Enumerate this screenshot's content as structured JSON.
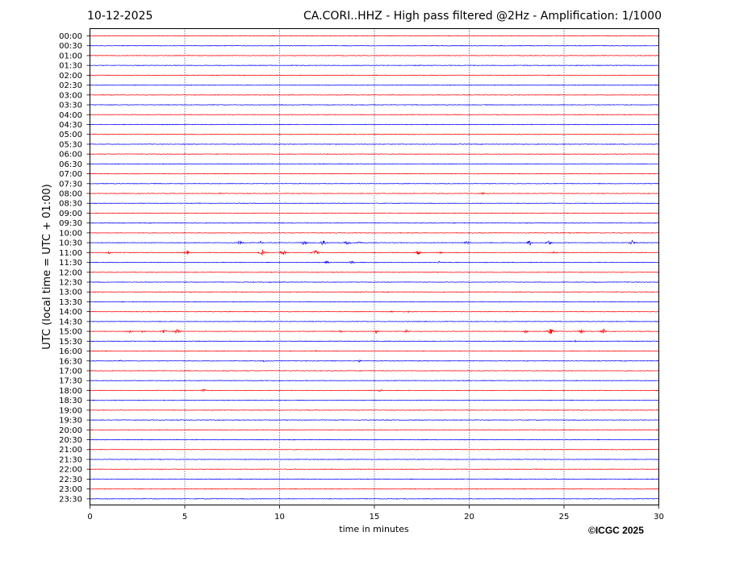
{
  "header": {
    "date": "10-12-2025",
    "title": "CA.CORI..HHZ - High pass filtered @2Hz - Amplification: 1/1000"
  },
  "footer": {
    "copyright": "©ICGC 2025"
  },
  "chart_data": {
    "type": "helicorder",
    "title": "CA.CORI..HHZ - High pass filtered @2Hz - Amplification: 1/1000",
    "xlabel": "time in minutes",
    "ylabel": "UTC (local time = UTC + 01:00)",
    "xlim": [
      0,
      30
    ],
    "xticks": [
      0,
      5,
      10,
      15,
      20,
      25,
      30
    ],
    "vertical_grid": [
      5,
      10,
      15,
      20,
      25
    ],
    "row_labels": [
      "00:00",
      "00:30",
      "01:00",
      "01:30",
      "02:00",
      "02:30",
      "03:00",
      "03:30",
      "04:00",
      "04:30",
      "05:00",
      "05:30",
      "06:00",
      "06:30",
      "07:00",
      "07:30",
      "08:00",
      "08:30",
      "09:00",
      "09:30",
      "10:00",
      "10:30",
      "11:00",
      "11:30",
      "12:00",
      "12:30",
      "13:00",
      "13:30",
      "14:00",
      "14:30",
      "15:00",
      "15:30",
      "16:00",
      "16:30",
      "17:00",
      "17:30",
      "18:00",
      "18:30",
      "19:00",
      "19:30",
      "20:00",
      "20:30",
      "21:00",
      "21:30",
      "22:00",
      "22:30",
      "23:00",
      "23:30"
    ],
    "colors": {
      "even_rows": "#ff0000",
      "odd_rows": "#0000ff",
      "grid": "#000080"
    },
    "events": [
      {
        "row": "07:30",
        "minute": 25.5,
        "amplitude": 0.4
      },
      {
        "row": "08:00",
        "minute": 6.9,
        "amplitude": 1.2
      },
      {
        "row": "08:00",
        "minute": 13.2,
        "amplitude": 0.6
      },
      {
        "row": "08:00",
        "minute": 20.7,
        "amplitude": 1.2
      },
      {
        "row": "08:30",
        "minute": 9.2,
        "amplitude": 0.7
      },
      {
        "row": "09:30",
        "minute": 16.1,
        "amplitude": 0.5
      },
      {
        "row": "10:00",
        "minute": 25.3,
        "amplitude": 1.0
      },
      {
        "row": "10:30",
        "minute": 7.9,
        "amplitude": 3.0
      },
      {
        "row": "10:30",
        "minute": 9.0,
        "amplitude": 2.0
      },
      {
        "row": "10:30",
        "minute": 11.3,
        "amplitude": 3.5
      },
      {
        "row": "10:30",
        "minute": 12.3,
        "amplitude": 5.5
      },
      {
        "row": "10:30",
        "minute": 13.6,
        "amplitude": 3.0
      },
      {
        "row": "10:30",
        "minute": 14.2,
        "amplitude": 2.5
      },
      {
        "row": "10:30",
        "minute": 19.9,
        "amplitude": 2.5
      },
      {
        "row": "10:30",
        "minute": 23.2,
        "amplitude": 4.0
      },
      {
        "row": "10:30",
        "minute": 24.2,
        "amplitude": 3.5
      },
      {
        "row": "10:30",
        "minute": 28.6,
        "amplitude": 3.5
      },
      {
        "row": "11:00",
        "minute": 1.0,
        "amplitude": 2.5
      },
      {
        "row": "11:00",
        "minute": 5.1,
        "amplitude": 3.5
      },
      {
        "row": "11:00",
        "minute": 9.1,
        "amplitude": 4.5
      },
      {
        "row": "11:00",
        "minute": 10.2,
        "amplitude": 4.0
      },
      {
        "row": "11:00",
        "minute": 11.9,
        "amplitude": 4.5
      },
      {
        "row": "11:00",
        "minute": 17.3,
        "amplitude": 3.5
      },
      {
        "row": "11:00",
        "minute": 18.5,
        "amplitude": 2.0
      },
      {
        "row": "11:00",
        "minute": 24.5,
        "amplitude": 2.0
      },
      {
        "row": "11:30",
        "minute": 12.5,
        "amplitude": 2.5
      },
      {
        "row": "11:30",
        "minute": 13.8,
        "amplitude": 2.0
      },
      {
        "row": "11:30",
        "minute": 18.4,
        "amplitude": 1.5
      },
      {
        "row": "12:30",
        "minute": 9.5,
        "amplitude": 0.9
      },
      {
        "row": "12:30",
        "minute": 26.7,
        "amplitude": 1.0
      },
      {
        "row": "14:00",
        "minute": 15.9,
        "amplitude": 1.0
      },
      {
        "row": "14:00",
        "minute": 16.8,
        "amplitude": 1.0
      },
      {
        "row": "15:00",
        "minute": 2.1,
        "amplitude": 2.5
      },
      {
        "row": "15:00",
        "minute": 2.8,
        "amplitude": 2.0
      },
      {
        "row": "15:00",
        "minute": 3.9,
        "amplitude": 3.5
      },
      {
        "row": "15:00",
        "minute": 4.6,
        "amplitude": 4.5
      },
      {
        "row": "15:00",
        "minute": 13.2,
        "amplitude": 2.0
      },
      {
        "row": "15:00",
        "minute": 15.1,
        "amplitude": 2.5
      },
      {
        "row": "15:00",
        "minute": 16.7,
        "amplitude": 2.0
      },
      {
        "row": "15:00",
        "minute": 23.0,
        "amplitude": 3.0
      },
      {
        "row": "15:00",
        "minute": 24.3,
        "amplitude": 5.0
      },
      {
        "row": "15:00",
        "minute": 25.9,
        "amplitude": 3.5
      },
      {
        "row": "15:00",
        "minute": 27.1,
        "amplitude": 3.0
      },
      {
        "row": "15:30",
        "minute": 25.6,
        "amplitude": 1.0
      },
      {
        "row": "16:00",
        "minute": 11.9,
        "amplitude": 1.0
      },
      {
        "row": "16:30",
        "minute": 1.6,
        "amplitude": 1.2
      },
      {
        "row": "16:30",
        "minute": 9.2,
        "amplitude": 1.2
      },
      {
        "row": "16:30",
        "minute": 14.2,
        "amplitude": 1.5
      },
      {
        "row": "18:00",
        "minute": 6.0,
        "amplitude": 2.0
      },
      {
        "row": "18:00",
        "minute": 15.3,
        "amplitude": 2.0
      }
    ]
  }
}
